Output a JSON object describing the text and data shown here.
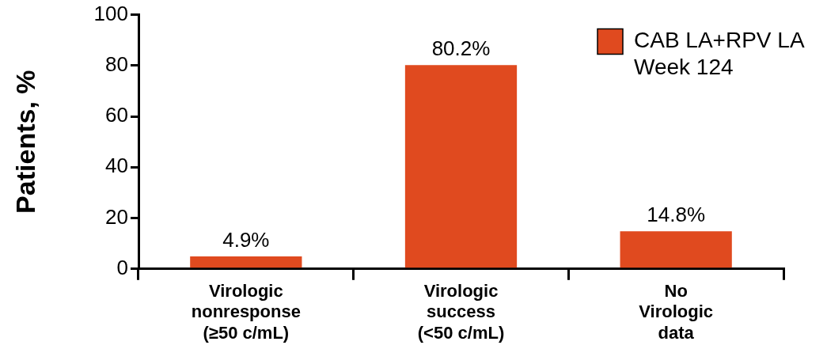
{
  "chart_data": {
    "type": "bar",
    "ylabel": "Patients, %",
    "categories": [
      "Virologic\nnonresponse\n(≥50 c/mL)",
      "Virologic\nsuccess\n(<50 c/mL)",
      "No\nVirologic\ndata"
    ],
    "series": [
      {
        "name": "CAB LA+RPV LA\nWeek 124",
        "color": "#e04a1f",
        "values": [
          4.9,
          80.2,
          14.8
        ]
      }
    ],
    "value_labels": [
      "4.9%",
      "80.2%",
      "14.8%"
    ],
    "ylim": [
      0,
      100
    ],
    "yticks": [
      0,
      20,
      40,
      60,
      80,
      100
    ],
    "grid": false,
    "legend": "top right"
  }
}
